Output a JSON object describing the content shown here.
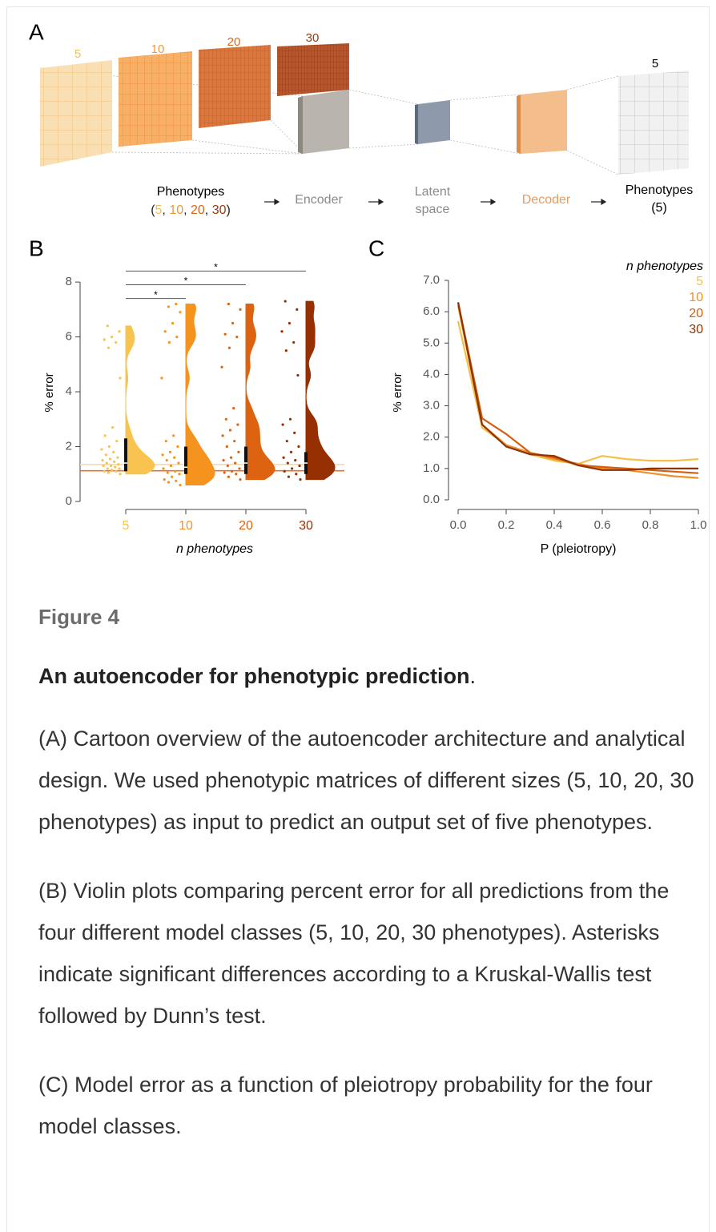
{
  "diagram": {
    "label": "A",
    "matrix_labels": [
      {
        "text": "5",
        "color": "#f0c060"
      },
      {
        "text": "10",
        "color": "#f0983a"
      },
      {
        "text": "20",
        "color": "#d8661a"
      },
      {
        "text": "30",
        "color": "#9a3a10"
      }
    ],
    "output_label": "5",
    "input_title": "Phenotypes",
    "input_sizes": [
      {
        "text": "(",
        "color": "#222222"
      },
      {
        "text": "5",
        "color": "#f0c060"
      },
      {
        "text": ", ",
        "color": "#222222"
      },
      {
        "text": "10",
        "color": "#f0983a"
      },
      {
        "text": ", ",
        "color": "#222222"
      },
      {
        "text": "20",
        "color": "#d8661a"
      },
      {
        "text": ", ",
        "color": "#222222"
      },
      {
        "text": "30",
        "color": "#9a3a10"
      },
      {
        "text": ")",
        "color": "#222222"
      }
    ],
    "encoder": "Encoder",
    "latent": [
      "Latent",
      "space"
    ],
    "decoder": "Decoder",
    "output_title": [
      "Phenotypes",
      "(5)"
    ]
  },
  "chart_data": [
    {
      "type": "violin",
      "panel_label": "B",
      "xlabel": "n phenotypes",
      "ylabel": "% error",
      "ylim": [
        0,
        8.5
      ],
      "yticks": [
        0,
        2,
        4,
        6,
        8
      ],
      "series": [
        {
          "name": "5",
          "color": "#f8c34e",
          "values": [
            1.0,
            1.05,
            1.1,
            1.1,
            1.15,
            1.2,
            1.2,
            1.25,
            1.3,
            1.3,
            1.35,
            1.4,
            1.45,
            1.5,
            1.55,
            1.6,
            1.7,
            1.8,
            1.9,
            2.0,
            2.2,
            2.4,
            2.7,
            4.5,
            5.6,
            5.8,
            5.9,
            6.0,
            6.2,
            6.4
          ],
          "quartiles": [
            1.1,
            1.4,
            2.3
          ]
        },
        {
          "name": "10",
          "color": "#f5931f",
          "values": [
            0.6,
            0.7,
            0.75,
            0.8,
            0.9,
            1.0,
            1.05,
            1.1,
            1.2,
            1.3,
            1.4,
            1.5,
            1.6,
            1.7,
            1.8,
            2.0,
            2.2,
            2.4,
            4.5,
            5.8,
            6.0,
            6.2,
            6.5,
            6.9,
            7.1,
            7.2
          ],
          "quartiles": [
            1.0,
            1.25,
            2.0
          ]
        },
        {
          "name": "20",
          "color": "#dd6310",
          "values": [
            0.8,
            0.9,
            1.0,
            1.05,
            1.1,
            1.2,
            1.3,
            1.4,
            1.5,
            1.6,
            1.8,
            2.0,
            2.2,
            2.4,
            2.6,
            2.8,
            3.0,
            3.4,
            4.9,
            5.6,
            6.0,
            6.1,
            6.5,
            7.0,
            7.2
          ],
          "quartiles": [
            1.0,
            1.4,
            2.0
          ]
        },
        {
          "name": "30",
          "color": "#963003",
          "values": [
            0.8,
            0.9,
            1.0,
            1.1,
            1.2,
            1.3,
            1.4,
            1.5,
            1.6,
            1.8,
            2.0,
            2.2,
            2.5,
            2.8,
            3.0,
            4.6,
            5.5,
            5.8,
            6.2,
            6.5,
            7.0,
            7.3
          ],
          "quartiles": [
            1.0,
            1.4,
            1.8
          ]
        }
      ],
      "hlines": [
        {
          "value": 1.35,
          "color": "#f8d9a8"
        },
        {
          "value": 1.12,
          "color": "#e8702a"
        }
      ],
      "brackets": [
        {
          "from": 0,
          "to": 1,
          "y": 7.4,
          "label": "*"
        },
        {
          "from": 0,
          "to": 2,
          "y": 7.9,
          "label": "*"
        },
        {
          "from": 0,
          "to": 3,
          "y": 8.4,
          "label": "*"
        }
      ]
    },
    {
      "type": "line",
      "panel_label": "C",
      "xlabel": "P (pleiotropy)",
      "ylabel": "% error",
      "legend_title": "n phenotypes",
      "legend": "upper right",
      "x": [
        0,
        0.1,
        0.2,
        0.3,
        0.4,
        0.5,
        0.6,
        0.7,
        0.8,
        0.9,
        1.0
      ],
      "xlim": [
        0,
        1
      ],
      "ylim": [
        0,
        7
      ],
      "xticks": [
        {
          "value": 0,
          "label": "0.0"
        },
        {
          "value": 0.2,
          "label": "0.2"
        },
        {
          "value": 0.4,
          "label": "0.4"
        },
        {
          "value": 0.6,
          "label": "0.6"
        },
        {
          "value": 0.8,
          "label": "0.8"
        },
        {
          "value": 1,
          "label": "1.0"
        }
      ],
      "yticks": [
        {
          "value": 0,
          "label": "0.0"
        },
        {
          "value": 1,
          "label": "1.0"
        },
        {
          "value": 2,
          "label": "2.0"
        },
        {
          "value": 3,
          "label": "3.0"
        },
        {
          "value": 4,
          "label": "4.0"
        },
        {
          "value": 5,
          "label": "5.0"
        },
        {
          "value": 6,
          "label": "6.0"
        },
        {
          "value": 7,
          "label": "7.0"
        }
      ],
      "series": [
        {
          "name": "5",
          "color": "#f5c04a",
          "values": [
            5.7,
            2.3,
            1.75,
            1.45,
            1.25,
            1.15,
            1.4,
            1.3,
            1.25,
            1.25,
            1.3
          ]
        },
        {
          "name": "10",
          "color": "#f0902a",
          "values": [
            6.2,
            2.4,
            1.75,
            1.5,
            1.3,
            1.15,
            1.0,
            0.95,
            0.85,
            0.75,
            0.7
          ]
        },
        {
          "name": "20",
          "color": "#d45f10",
          "values": [
            6.3,
            2.6,
            2.1,
            1.5,
            1.35,
            1.1,
            1.05,
            1.0,
            0.95,
            0.9,
            0.85
          ]
        },
        {
          "name": "30",
          "color": "#8f3305",
          "values": [
            6.3,
            2.4,
            1.7,
            1.45,
            1.4,
            1.1,
            0.95,
            0.95,
            1.0,
            1.0,
            1.0
          ]
        }
      ]
    }
  ],
  "caption": {
    "figure_label": "Figure 4",
    "title": "An autoencoder for phenotypic prediction",
    "title_end": ".",
    "paragraphs": [
      "(A) Cartoon overview of the autoencoder architecture and analytical design. We used phenotypic matrices of different sizes (5, 10, 20, 30 phenotypes) as input to predict an output set of five phenotypes.",
      "(B) Violin plots comparing percent error for all predictions from the four different model classes (5, 10, 20, 30 phenotypes). Asterisks indicate significant differences according to a Kruskal-Wallis test followed by Dunn’s test.",
      "(C) Model error as a function of pleiotropy probability for the four model classes."
    ]
  }
}
